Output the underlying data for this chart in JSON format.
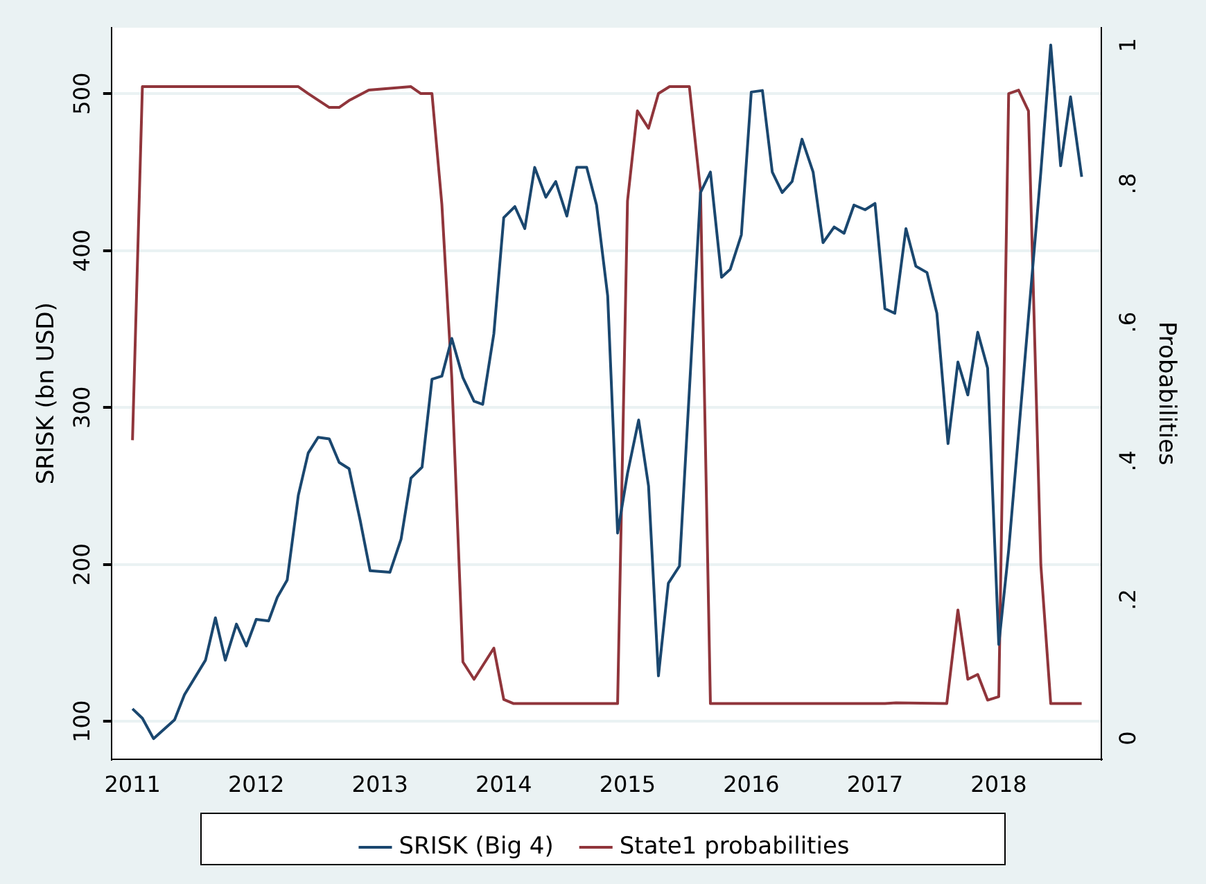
{
  "chart_data": {
    "type": "line",
    "ylabel": "SRISK (bn USD)",
    "y2label": "Probabilities",
    "xlim": [
      2010.83,
      2018.83
    ],
    "xticks": [
      2011,
      2012,
      2013,
      2014,
      2015,
      2016,
      2017,
      2018
    ],
    "ylim": [
      76,
      542
    ],
    "yticks": [
      100,
      200,
      300,
      400,
      500
    ],
    "y2lim": [
      -0.03,
      1.025
    ],
    "y2ticks": [
      {
        "value": 0,
        "label": "0"
      },
      {
        "value": 0.2,
        "label": ".2"
      },
      {
        "value": 0.4,
        "label": ".4"
      },
      {
        "value": 0.6,
        "label": ".6"
      },
      {
        "value": 0.8,
        "label": ".8"
      },
      {
        "value": 1,
        "label": "1"
      }
    ],
    "grid": "y",
    "legend": "bottom",
    "marker": "none",
    "line_style": "solid",
    "series": [
      {
        "name": "SRISK (Big 4)",
        "color": "#1a476f",
        "x": [
          2011.0,
          2011.08,
          2011.17,
          2011.34,
          2011.42,
          2011.59,
          2011.67,
          2011.75,
          2011.84,
          2011.92,
          2012.0,
          2012.1,
          2012.17,
          2012.25,
          2012.34,
          2012.42,
          2012.5,
          2012.59,
          2012.67,
          2012.75,
          2012.84,
          2012.92,
          2013.08,
          2013.17,
          2013.25,
          2013.34,
          2013.42,
          2013.5,
          2013.58,
          2013.67,
          2013.76,
          2013.83,
          2013.92,
          2014.0,
          2014.09,
          2014.17,
          2014.25,
          2014.34,
          2014.42,
          2014.51,
          2014.59,
          2014.67,
          2014.75,
          2014.84,
          2014.92,
          2015.0,
          2015.09,
          2015.17,
          2015.25,
          2015.33,
          2015.42,
          2015.59,
          2015.67,
          2015.76,
          2015.83,
          2015.92,
          2016.0,
          2016.09,
          2016.17,
          2016.25,
          2016.33,
          2016.41,
          2016.5,
          2016.58,
          2016.67,
          2016.75,
          2016.83,
          2016.92,
          2017.0,
          2017.08,
          2017.16,
          2017.25,
          2017.33,
          2017.42,
          2017.5,
          2017.59,
          2017.67,
          2017.75,
          2017.83,
          2017.91,
          2018.0,
          2018.08,
          2018.34,
          2018.42,
          2018.5,
          2018.58,
          2018.67
        ],
        "values": [
          108,
          102,
          89,
          101,
          117,
          139,
          166,
          139,
          162,
          148,
          165,
          164,
          179,
          190,
          244,
          271,
          281,
          280,
          265,
          261,
          228,
          196,
          195,
          216,
          255,
          262,
          318,
          320,
          344,
          319,
          304,
          302,
          347,
          421,
          428,
          414,
          453,
          434,
          444,
          422,
          453,
          453,
          429,
          371,
          220,
          258,
          292,
          250,
          129,
          188,
          199,
          437,
          450,
          383,
          388,
          410,
          501,
          502,
          450,
          437,
          444,
          471,
          450,
          405,
          415,
          411,
          429,
          426,
          430,
          363,
          360,
          414,
          390,
          386,
          360,
          277,
          329,
          308,
          348,
          325,
          149,
          209,
          450,
          531,
          454,
          498,
          447
        ]
      },
      {
        "name": "State1 probabilities",
        "color": "#90353b",
        "axis": "y2",
        "x": [
          2011.0,
          2011.08,
          2012.34,
          2012.42,
          2012.59,
          2012.67,
          2012.75,
          2012.91,
          2013.25,
          2013.33,
          2013.42,
          2013.5,
          2013.58,
          2013.67,
          2013.76,
          2013.92,
          2014.0,
          2014.08,
          2014.92,
          2015.0,
          2015.08,
          2015.17,
          2015.25,
          2015.34,
          2015.5,
          2015.59,
          2015.67,
          2017.08,
          2017.17,
          2017.58,
          2017.67,
          2017.75,
          2017.83,
          2017.91,
          2018.0,
          2018.08,
          2018.16,
          2018.24,
          2018.34,
          2018.42,
          2018.67
        ],
        "values": [
          0.43,
          0.94,
          0.94,
          0.93,
          0.91,
          0.91,
          0.92,
          0.935,
          0.94,
          0.93,
          0.93,
          0.77,
          0.52,
          0.11,
          0.085,
          0.13,
          0.056,
          0.05,
          0.05,
          0.775,
          0.905,
          0.88,
          0.93,
          0.94,
          0.94,
          0.79,
          0.05,
          0.05,
          0.051,
          0.05,
          0.185,
          0.085,
          0.092,
          0.055,
          0.06,
          0.93,
          0.935,
          0.905,
          0.25,
          0.05,
          0.05
        ]
      }
    ]
  }
}
